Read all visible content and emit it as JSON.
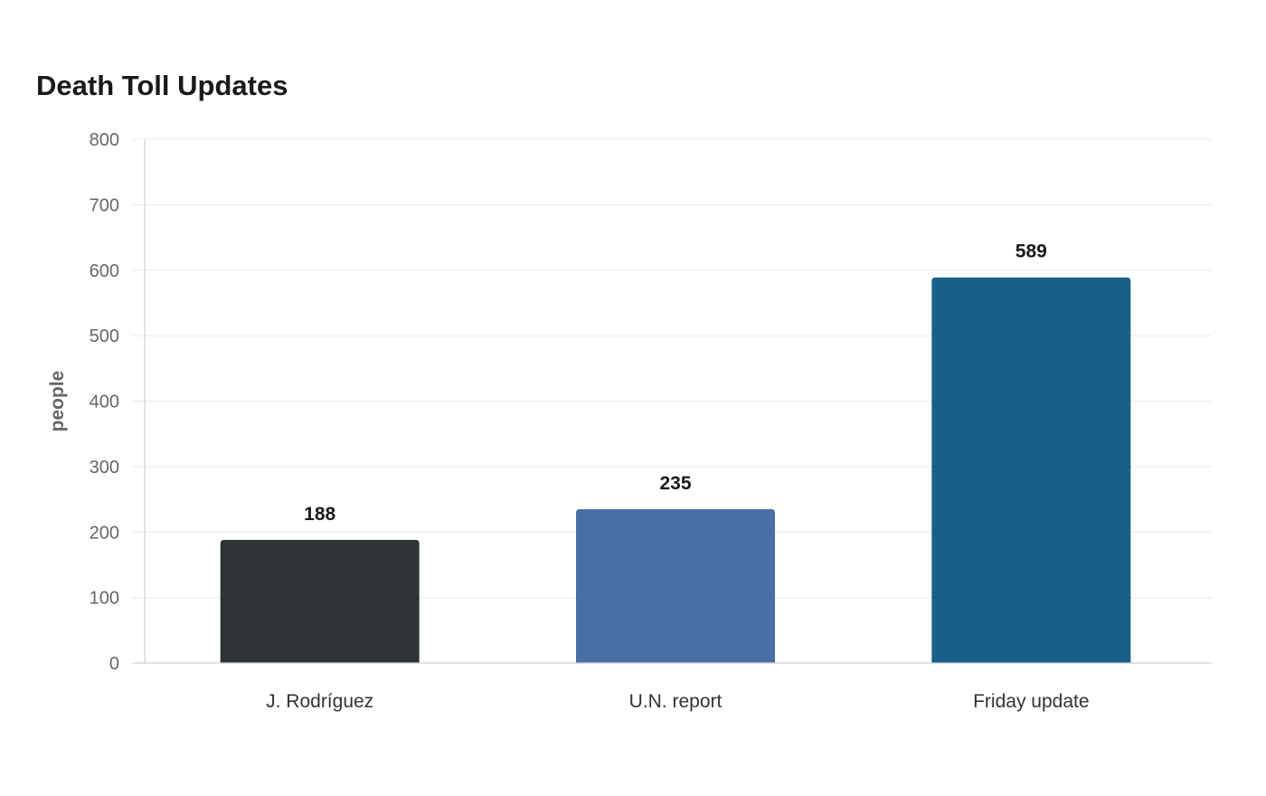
{
  "chart_data": {
    "type": "bar",
    "title": "Death Toll Updates",
    "xlabel": "",
    "ylabel": "people",
    "categories": [
      "J. Rodríguez",
      "U.N. report",
      "Friday update"
    ],
    "values": [
      188,
      235,
      589
    ],
    "data_labels": [
      "188",
      "235",
      "589"
    ],
    "colors": [
      "#2e3436",
      "#4a6fa5",
      "#176188"
    ],
    "ylim": [
      0,
      800
    ],
    "yticks": [
      0,
      100,
      200,
      300,
      400,
      500,
      600,
      700,
      800
    ],
    "grid": true,
    "legend": "none"
  }
}
